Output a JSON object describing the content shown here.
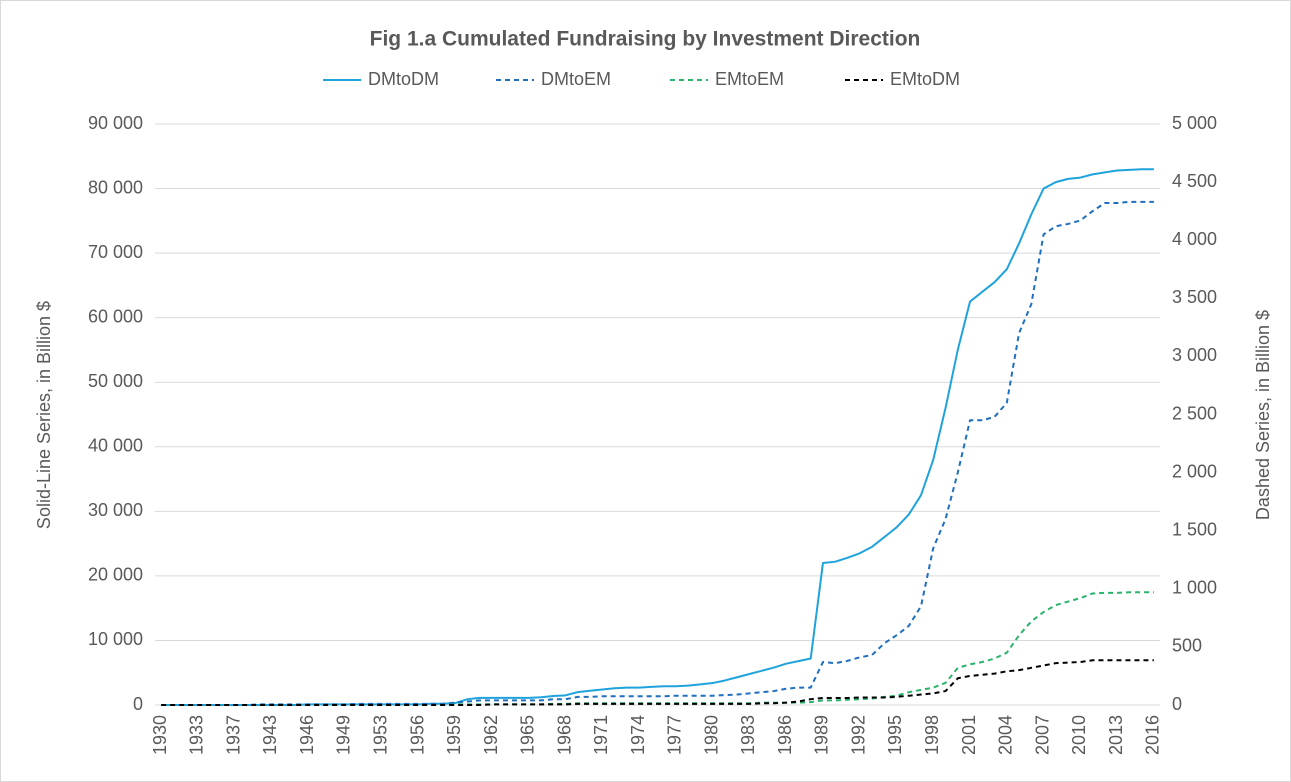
{
  "chart_data": {
    "type": "line",
    "title": "Fig 1.a Cumulated Fundraising by Investment Direction",
    "y_label": "Solid-Line Series, in Billion $",
    "y2_label": "Dashed Series, in Billion $",
    "categories": [
      "1930",
      null,
      null,
      "1933",
      null,
      null,
      "1937",
      null,
      null,
      "1943",
      null,
      null,
      "1946",
      null,
      null,
      "1949",
      null,
      null,
      "1953",
      null,
      null,
      "1956",
      null,
      null,
      "1959",
      null,
      null,
      "1962",
      null,
      null,
      "1965",
      null,
      null,
      "1968",
      null,
      null,
      "1971",
      null,
      null,
      "1974",
      null,
      null,
      "1977",
      null,
      null,
      "1980",
      null,
      null,
      "1983",
      null,
      null,
      "1986",
      null,
      null,
      "1989",
      null,
      null,
      "1992",
      null,
      null,
      "1995",
      null,
      null,
      "1998",
      null,
      null,
      "2001",
      null,
      null,
      "2004",
      null,
      null,
      "2007",
      null,
      null,
      "2010",
      null,
      null,
      "2013",
      null,
      null,
      "2016"
    ],
    "series": [
      {
        "name": "DMtoDM",
        "color": "#1fa3dc",
        "line_style": "solid",
        "axis": "y",
        "values": [
          0,
          0,
          0,
          0,
          0,
          0,
          0,
          0,
          0,
          0,
          0,
          0,
          100,
          100,
          100,
          100,
          100,
          100,
          100,
          100,
          100,
          100,
          200,
          200,
          300,
          900,
          1100,
          1100,
          1100,
          1100,
          1100,
          1200,
          1400,
          1500,
          2000,
          2200,
          2400,
          2600,
          2700,
          2700,
          2800,
          2900,
          2900,
          3000,
          3200,
          3400,
          3800,
          4300,
          4800,
          5300,
          5800,
          6400,
          6800,
          7200,
          22000,
          22200,
          22800,
          23500,
          24500,
          26000,
          27500,
          29500,
          32500,
          38000,
          46000,
          55000,
          62500,
          64000,
          65500,
          67500,
          71500,
          76000,
          80000,
          81000,
          81500,
          81700,
          82200,
          82500,
          82800,
          82900,
          83000,
          83000
        ]
      },
      {
        "name": "DMtoEM",
        "color": "#1f6fc0",
        "line_style": "dashed",
        "axis": "y2",
        "values": [
          0,
          0,
          0,
          0,
          0,
          0,
          0,
          0,
          5,
          5,
          5,
          5,
          5,
          5,
          5,
          5,
          10,
          10,
          10,
          10,
          10,
          10,
          10,
          10,
          20,
          30,
          40,
          40,
          40,
          40,
          40,
          40,
          50,
          50,
          70,
          70,
          75,
          75,
          75,
          75,
          75,
          75,
          80,
          80,
          80,
          80,
          85,
          90,
          100,
          110,
          120,
          140,
          150,
          150,
          370,
          360,
          380,
          410,
          430,
          530,
          600,
          680,
          850,
          1350,
          1600,
          2000,
          2450,
          2450,
          2480,
          2600,
          3200,
          3450,
          4050,
          4120,
          4140,
          4170,
          4250,
          4320,
          4320,
          4330,
          4330,
          4330
        ]
      },
      {
        "name": "EMtoEM",
        "color": "#2bb36b",
        "line_style": "dashed",
        "axis": "y2",
        "values": [
          0,
          0,
          0,
          0,
          0,
          0,
          0,
          0,
          0,
          0,
          0,
          0,
          0,
          0,
          0,
          0,
          0,
          0,
          0,
          0,
          0,
          0,
          0,
          0,
          5,
          5,
          5,
          5,
          5,
          5,
          5,
          5,
          10,
          10,
          15,
          15,
          15,
          15,
          15,
          15,
          15,
          15,
          15,
          15,
          15,
          15,
          15,
          15,
          15,
          20,
          20,
          20,
          20,
          25,
          40,
          40,
          45,
          50,
          55,
          70,
          80,
          110,
          130,
          150,
          190,
          320,
          350,
          370,
          400,
          450,
          600,
          720,
          800,
          860,
          890,
          920,
          960,
          965,
          965,
          970,
          970,
          970
        ]
      },
      {
        "name": "EMtoDM",
        "color": "#000000",
        "line_style": "dashed",
        "axis": "y2",
        "values": [
          0,
          0,
          0,
          0,
          0,
          0,
          0,
          0,
          0,
          0,
          0,
          0,
          0,
          0,
          0,
          0,
          0,
          0,
          0,
          0,
          0,
          0,
          0,
          0,
          0,
          0,
          0,
          5,
          5,
          5,
          5,
          5,
          5,
          5,
          10,
          10,
          10,
          10,
          10,
          10,
          10,
          10,
          10,
          10,
          10,
          10,
          10,
          10,
          10,
          15,
          15,
          20,
          30,
          50,
          60,
          60,
          60,
          65,
          65,
          65,
          70,
          80,
          90,
          100,
          120,
          230,
          250,
          260,
          270,
          290,
          300,
          320,
          340,
          360,
          365,
          370,
          385,
          385,
          385,
          385,
          385,
          385
        ]
      }
    ],
    "ylim": [
      0,
      90000
    ],
    "yticks": [
      0,
      {
        "value": 10000,
        "label": "10 000"
      },
      {
        "value": 20000,
        "label": "20 000"
      },
      {
        "value": 30000,
        "label": "30 000"
      },
      {
        "value": 40000,
        "label": "40 000"
      },
      {
        "value": 50000,
        "label": "50 000"
      },
      {
        "value": 60000,
        "label": "60 000"
      },
      {
        "value": 70000,
        "label": "70 000"
      },
      {
        "value": 80000,
        "label": "80 000"
      },
      {
        "value": 90000,
        "label": "90 000"
      }
    ],
    "y2lim": [
      0,
      5000
    ],
    "y2ticks": [
      0,
      500,
      {
        "value": 1000,
        "label": "1 000"
      },
      {
        "value": 1500,
        "label": "1 500"
      },
      {
        "value": 2000,
        "label": "2 000"
      },
      {
        "value": 2500,
        "label": "2 500"
      },
      {
        "value": 3000,
        "label": "3 000"
      },
      {
        "value": 3500,
        "label": "3 500"
      },
      {
        "value": 4000,
        "label": "4 000"
      },
      {
        "value": 4500,
        "label": "4 500"
      },
      {
        "value": 5000,
        "label": "5 000"
      }
    ],
    "grid": true,
    "legend": "top"
  }
}
